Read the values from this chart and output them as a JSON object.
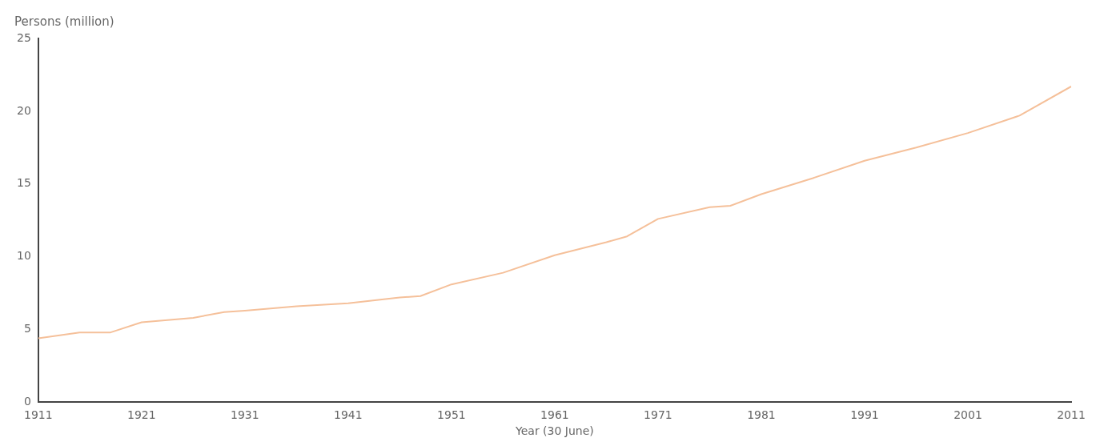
{
  "chart_data": {
    "type": "line",
    "xlabel": "Year (30 June)",
    "ylabel": "Persons (million)",
    "x": [
      1911,
      1915,
      1918,
      1921,
      1926,
      1929,
      1931,
      1936,
      1941,
      1946,
      1948,
      1951,
      1956,
      1961,
      1966,
      1968,
      1971,
      1976,
      1978,
      1981,
      1986,
      1991,
      1996,
      2001,
      2006,
      2011
    ],
    "series": [
      {
        "color": "#f5c09a",
        "values": [
          4.4,
          4.8,
          4.8,
          5.5,
          5.8,
          6.2,
          6.3,
          6.6,
          6.8,
          7.2,
          7.3,
          8.1,
          8.9,
          10.1,
          11.0,
          11.4,
          12.6,
          13.4,
          13.5,
          14.3,
          15.4,
          16.6,
          17.5,
          18.5,
          19.7,
          21.7
        ]
      }
    ],
    "xlim": [
      1911,
      2011
    ],
    "xticks": [
      1911,
      1921,
      1931,
      1941,
      1951,
      1961,
      1971,
      1981,
      1991,
      2001,
      2011
    ],
    "ylim": [
      0,
      25
    ],
    "yticks": [
      0,
      5,
      10,
      15,
      20,
      25
    ],
    "grid": false,
    "legend": false,
    "marker": "none",
    "line_style": "solid"
  }
}
